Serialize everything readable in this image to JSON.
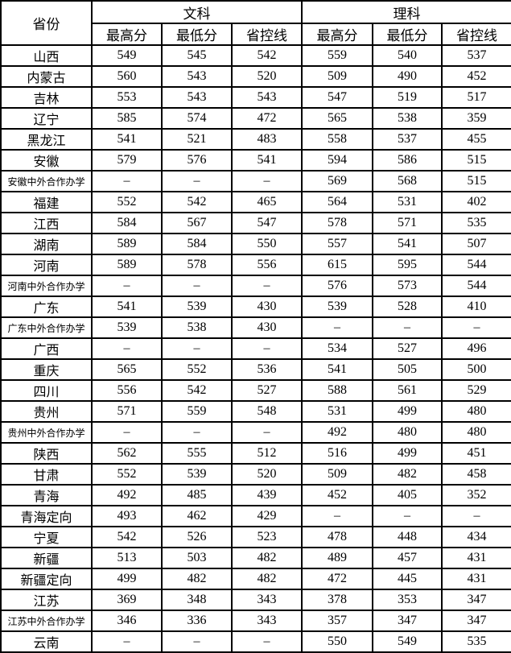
{
  "table": {
    "header": {
      "province_label": "省份",
      "groups": [
        {
          "label": "文科",
          "subheaders": [
            "最高分",
            "最低分",
            "省控线"
          ]
        },
        {
          "label": "理科",
          "subheaders": [
            "最高分",
            "最低分",
            "省控线"
          ]
        }
      ]
    },
    "dash": "–",
    "rows": [
      {
        "province": "山西",
        "values": [
          "549",
          "545",
          "542",
          "559",
          "540",
          "537"
        ]
      },
      {
        "province": "内蒙古",
        "values": [
          "560",
          "543",
          "520",
          "509",
          "490",
          "452"
        ]
      },
      {
        "province": "吉林",
        "values": [
          "553",
          "543",
          "543",
          "547",
          "519",
          "517"
        ]
      },
      {
        "province": "辽宁",
        "values": [
          "585",
          "574",
          "472",
          "565",
          "538",
          "359"
        ]
      },
      {
        "province": "黑龙江",
        "values": [
          "541",
          "521",
          "483",
          "558",
          "537",
          "455"
        ]
      },
      {
        "province": "安徽",
        "values": [
          "579",
          "576",
          "541",
          "594",
          "586",
          "515"
        ]
      },
      {
        "province": "安徽中外合作办学",
        "values": [
          "–",
          "–",
          "–",
          "569",
          "568",
          "515"
        ]
      },
      {
        "province": "福建",
        "values": [
          "552",
          "542",
          "465",
          "564",
          "531",
          "402"
        ]
      },
      {
        "province": "江西",
        "values": [
          "584",
          "567",
          "547",
          "578",
          "571",
          "535"
        ]
      },
      {
        "province": "湖南",
        "values": [
          "589",
          "584",
          "550",
          "557",
          "541",
          "507"
        ]
      },
      {
        "province": "河南",
        "values": [
          "589",
          "578",
          "556",
          "615",
          "595",
          "544"
        ]
      },
      {
        "province": "河南中外合作办学",
        "values": [
          "–",
          "–",
          "–",
          "576",
          "573",
          "544"
        ]
      },
      {
        "province": "广东",
        "values": [
          "541",
          "539",
          "430",
          "539",
          "528",
          "410"
        ]
      },
      {
        "province": "广东中外合作办学",
        "values": [
          "539",
          "538",
          "430",
          "–",
          "–",
          "–"
        ]
      },
      {
        "province": "广西",
        "values": [
          "–",
          "–",
          "–",
          "534",
          "527",
          "496"
        ]
      },
      {
        "province": "重庆",
        "values": [
          "565",
          "552",
          "536",
          "541",
          "505",
          "500"
        ]
      },
      {
        "province": "四川",
        "values": [
          "556",
          "542",
          "527",
          "588",
          "561",
          "529"
        ]
      },
      {
        "province": "贵州",
        "values": [
          "571",
          "559",
          "548",
          "531",
          "499",
          "480"
        ]
      },
      {
        "province": "贵州中外合作办学",
        "values": [
          "–",
          "–",
          "–",
          "492",
          "480",
          "480"
        ]
      },
      {
        "province": "陕西",
        "values": [
          "562",
          "555",
          "512",
          "516",
          "499",
          "451"
        ]
      },
      {
        "province": "甘肃",
        "values": [
          "552",
          "539",
          "520",
          "509",
          "482",
          "458"
        ]
      },
      {
        "province": "青海",
        "values": [
          "492",
          "485",
          "439",
          "452",
          "405",
          "352"
        ]
      },
      {
        "province": "青海定向",
        "values": [
          "493",
          "462",
          "429",
          "–",
          "–",
          "–"
        ]
      },
      {
        "province": "宁夏",
        "values": [
          "542",
          "526",
          "523",
          "478",
          "448",
          "434"
        ]
      },
      {
        "province": "新疆",
        "values": [
          "513",
          "503",
          "482",
          "489",
          "457",
          "431"
        ]
      },
      {
        "province": "新疆定向",
        "values": [
          "499",
          "482",
          "482",
          "472",
          "445",
          "431"
        ]
      },
      {
        "province": "江苏",
        "values": [
          "369",
          "348",
          "343",
          "378",
          "353",
          "347"
        ]
      },
      {
        "province": "江苏中外合作办学",
        "values": [
          "346",
          "336",
          "343",
          "357",
          "347",
          "347"
        ]
      },
      {
        "province": "云南",
        "values": [
          "–",
          "–",
          "–",
          "550",
          "549",
          "535"
        ]
      }
    ]
  },
  "colors": {
    "border": "#000000",
    "text": "#000000",
    "background": "#ffffff"
  }
}
